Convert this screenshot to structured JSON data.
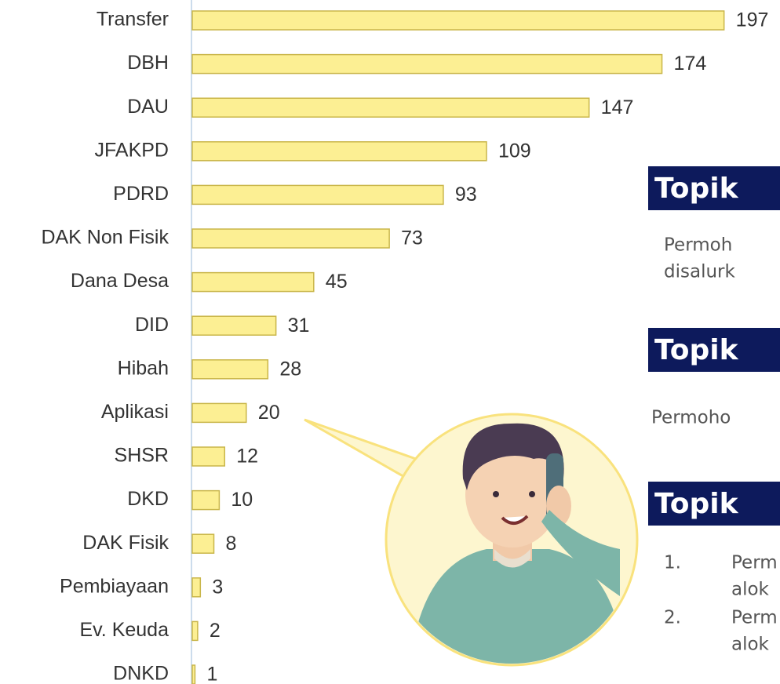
{
  "chart_data": {
    "type": "barh",
    "categories": [
      "Transfer",
      "DBH",
      "DAU",
      "JFAKPD",
      "PDRD",
      "DAK Non Fisik",
      "Dana Desa",
      "DID",
      "Hibah",
      "Aplikasi",
      "SHSR",
      "DKD",
      "DAK Fisik",
      "Pembiayaan",
      "Ev. Keuda",
      "DNKD"
    ],
    "values": [
      197,
      174,
      147,
      109,
      93,
      73,
      45,
      31,
      28,
      20,
      12,
      10,
      8,
      3,
      2,
      1
    ],
    "color": "#fcef93"
  },
  "panels": [
    {
      "heading": "Topik",
      "lines": [
        "Permoh",
        "disalurk"
      ]
    },
    {
      "heading": "Topik",
      "lines": [
        "Permoho"
      ]
    },
    {
      "heading": "Topik",
      "list": [
        {
          "number": "1.",
          "lines": [
            "Perm",
            "alok"
          ]
        },
        {
          "number": "2.",
          "lines": [
            "Perm",
            "alok"
          ]
        }
      ]
    }
  ]
}
